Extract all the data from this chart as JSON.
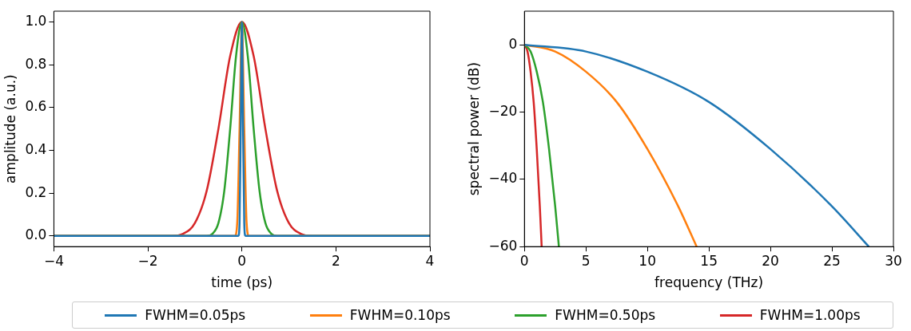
{
  "chart_data": [
    {
      "type": "line",
      "xlabel": "time (ps)",
      "ylabel": "amplitude (a.u.)",
      "xlim": [
        -4,
        4
      ],
      "ylim": [
        -0.05,
        1.05
      ],
      "xticks": [
        {
          "value": -4,
          "label": "−4"
        },
        {
          "value": -2,
          "label": "−2"
        },
        0,
        2,
        4
      ],
      "yticks": [
        {
          "value": 0,
          "label": "0.0"
        },
        {
          "value": 0.2,
          "label": "0.2"
        },
        {
          "value": 0.4,
          "label": "0.4"
        },
        {
          "value": 0.6,
          "label": "0.6"
        },
        {
          "value": 0.8,
          "label": "0.8"
        },
        {
          "value": 1,
          "label": "1.0"
        }
      ],
      "grid": false,
      "legend": "bottom",
      "line_style": "solid",
      "series": [
        {
          "name": "FWHM=0.05ps",
          "color": "#1f77b4",
          "x": [
            -4,
            -0.1,
            -0.075,
            -0.05,
            -0.025,
            0,
            0.025,
            0.05,
            0.075,
            0.1,
            4
          ],
          "values": [
            0,
            0,
            0,
            0.06,
            0.5,
            1,
            0.5,
            0.06,
            0,
            0,
            0
          ]
        },
        {
          "name": "FWHM=0.10ps",
          "color": "#ff7f0e",
          "x": [
            -4,
            -0.2,
            -0.15,
            -0.1,
            -0.05,
            0,
            0.05,
            0.1,
            0.15,
            0.2,
            4
          ],
          "values": [
            0,
            0,
            0,
            0.06,
            0.5,
            1,
            0.5,
            0.06,
            0,
            0,
            0
          ]
        },
        {
          "name": "FWHM=0.50ps",
          "color": "#2ca02c",
          "x": [
            -4,
            -1,
            -0.75,
            -0.625,
            -0.5,
            -0.375,
            -0.25,
            -0.125,
            0,
            0.125,
            0.25,
            0.375,
            0.5,
            0.625,
            0.75,
            1,
            4
          ],
          "values": [
            0,
            0,
            0,
            0.01,
            0.06,
            0.21,
            0.5,
            0.84,
            1,
            0.84,
            0.5,
            0.21,
            0.06,
            0.01,
            0,
            0,
            0
          ]
        },
        {
          "name": "FWHM=1.00ps",
          "color": "#d62728",
          "x": [
            -4,
            -2,
            -1.5,
            -1.25,
            -1,
            -0.75,
            -0.5,
            -0.25,
            0,
            0.25,
            0.5,
            0.75,
            1,
            1.25,
            1.5,
            2,
            4
          ],
          "values": [
            0,
            0,
            0,
            0.01,
            0.06,
            0.21,
            0.5,
            0.84,
            1,
            0.84,
            0.5,
            0.21,
            0.06,
            0.01,
            0,
            0,
            0
          ]
        }
      ]
    },
    {
      "type": "line",
      "xlabel": "frequency (THz)",
      "ylabel": "spectral power (dB)",
      "xlim": [
        0,
        30
      ],
      "ylim": [
        -60,
        10
      ],
      "xticks": [
        0,
        5,
        10,
        15,
        20,
        25,
        30
      ],
      "yticks": [
        {
          "value": -60,
          "label": "−60"
        },
        {
          "value": -40,
          "label": "−40"
        },
        {
          "value": -20,
          "label": "−20"
        },
        0
      ],
      "grid": false,
      "legend": "bottom",
      "line_style": "solid",
      "series": [
        {
          "name": "FWHM=0.05ps",
          "color": "#1f77b4",
          "x": [
            0,
            5,
            10,
            15,
            20,
            25,
            28
          ],
          "values": [
            0,
            -2,
            -8,
            -17,
            -31,
            -48,
            -60
          ]
        },
        {
          "name": "FWHM=0.10ps",
          "color": "#ff7f0e",
          "x": [
            0,
            2.5,
            5,
            7.5,
            10,
            12.5,
            14
          ],
          "values": [
            0,
            -2,
            -8,
            -17,
            -31,
            -48,
            -60
          ]
        },
        {
          "name": "FWHM=0.50ps",
          "color": "#2ca02c",
          "x": [
            0,
            0.5,
            1,
            1.5,
            2,
            2.5,
            2.8
          ],
          "values": [
            0,
            -2,
            -8,
            -17,
            -31,
            -48,
            -60
          ]
        },
        {
          "name": "FWHM=1.00ps",
          "color": "#d62728",
          "x": [
            0,
            0.25,
            0.5,
            0.75,
            1,
            1.25,
            1.4
          ],
          "values": [
            0,
            -2,
            -8,
            -17,
            -31,
            -48,
            -60
          ]
        }
      ]
    }
  ]
}
